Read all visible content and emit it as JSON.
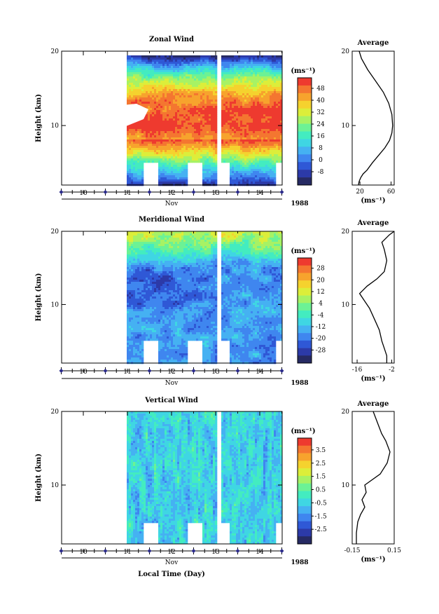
{
  "figure": {
    "xlabel": "Local Time (Day)",
    "month_label": "Nov",
    "year_label": "1988",
    "unit_label": "(ms⁻¹)",
    "unit_label_axis": "(ms⁻¹)",
    "ylabel": "Height (km)",
    "avg_title": "Average"
  },
  "chart_data": [
    {
      "type": "heatmap",
      "title": "Zonal Wind",
      "ylabel": "Height (km)",
      "xlabel": "Nov",
      "x_ticks": [
        "10",
        "11",
        "12",
        "13",
        "14"
      ],
      "y_ticks": [
        "20",
        "10"
      ],
      "xlim": [
        9.5,
        14.6
      ],
      "ylim": [
        2,
        20
      ],
      "colorbar_ticks": [
        "48",
        "40",
        "32",
        "24",
        "16",
        "8",
        "0",
        "-8"
      ],
      "colorbar_range": [
        -12,
        52
      ],
      "colors": [
        "#262a63",
        "#2c3aa8",
        "#2f58d6",
        "#3f86ef",
        "#45b1f2",
        "#3fd6e3",
        "#43ecc0",
        "#6cf295",
        "#a7f264",
        "#dcee3a",
        "#f5d22e",
        "#f7a32d",
        "#f47630",
        "#ee3a2f"
      ],
      "description_free": true
    },
    {
      "type": "line",
      "title": "Average",
      "x_ticks": [
        "20",
        "60"
      ],
      "y_ticks": [
        "20",
        "10"
      ],
      "xlim": [
        10,
        64
      ],
      "ylim": [
        2,
        20
      ],
      "xlabel": "(ms⁻¹)",
      "series": [
        {
          "x": [
            19,
            22,
            30,
            40,
            50,
            57,
            61,
            62,
            61,
            58,
            52,
            44,
            36,
            29,
            24,
            21,
            19,
            18
          ],
          "y": [
            20,
            19,
            17.5,
            16,
            14.5,
            13,
            11.5,
            10,
            9,
            8,
            7,
            6,
            5,
            4,
            3.5,
            3,
            2.5,
            2
          ]
        }
      ]
    },
    {
      "type": "heatmap",
      "title": "Meridional Wind",
      "ylabel": "Height (km)",
      "xlabel": "Nov",
      "x_ticks": [
        "10",
        "11",
        "12",
        "13",
        "14"
      ],
      "y_ticks": [
        "20",
        "10"
      ],
      "xlim": [
        9.5,
        14.6
      ],
      "ylim": [
        2,
        20
      ],
      "colorbar_ticks": [
        "28",
        "20",
        "12",
        "4",
        "-4",
        "-12",
        "-20",
        "-28"
      ],
      "colorbar_range": [
        -32,
        32
      ],
      "colors": [
        "#262a63",
        "#2c3aa8",
        "#2f58d6",
        "#3f86ef",
        "#45b1f2",
        "#3fd6e3",
        "#43ecc0",
        "#6cf295",
        "#a7f264",
        "#dcee3a",
        "#f5d22e",
        "#f7a32d",
        "#f47630",
        "#ee3a2f"
      ]
    },
    {
      "type": "line",
      "title": "Average",
      "x_ticks": [
        "-16",
        "-2"
      ],
      "y_ticks": [
        "20",
        "10"
      ],
      "xlim": [
        -18,
        -1
      ],
      "ylim": [
        2,
        20
      ],
      "xlabel": "(ms⁻¹)",
      "series": [
        {
          "x": [
            -1,
            -3,
            -6,
            -5,
            -4,
            -5,
            -8,
            -12,
            -15,
            -13,
            -11,
            -9,
            -7,
            -6,
            -5,
            -4,
            -4
          ],
          "y": [
            20,
            19.5,
            18.5,
            17.5,
            16,
            14.5,
            13.5,
            12.5,
            11.5,
            10.5,
            9.5,
            8,
            6.5,
            5,
            4,
            3,
            2
          ]
        }
      ]
    },
    {
      "type": "heatmap",
      "title": "Vertical Wind",
      "ylabel": "Height (km)",
      "xlabel": "Nov",
      "x_ticks": [
        "10",
        "11",
        "12",
        "13",
        "14"
      ],
      "y_ticks": [
        "20",
        "10"
      ],
      "xlim": [
        9.5,
        14.6
      ],
      "ylim": [
        2,
        20
      ],
      "colorbar_ticks": [
        "3.5",
        "2.5",
        "1.5",
        "0.5",
        "-0.5",
        "-1.5",
        "-2.5"
      ],
      "colorbar_range": [
        -3.0,
        4.0
      ],
      "colors": [
        "#262a63",
        "#2c3aa8",
        "#2f58d6",
        "#3f86ef",
        "#45b1f2",
        "#3fd6e3",
        "#43ecc0",
        "#6cf295",
        "#a7f264",
        "#dcee3a",
        "#f5d22e",
        "#f7a32d",
        "#f47630",
        "#ee3a2f"
      ]
    },
    {
      "type": "line",
      "title": "Average",
      "x_ticks": [
        "-0.15",
        "0.15"
      ],
      "y_ticks": [
        "20",
        "10"
      ],
      "xlim": [
        -0.15,
        0.15
      ],
      "ylim": [
        2,
        20
      ],
      "xlabel": "(ms⁻¹)",
      "series": [
        {
          "x": [
            0.0,
            0.02,
            0.04,
            0.06,
            0.09,
            0.12,
            0.1,
            0.05,
            -0.06,
            -0.05,
            -0.08,
            -0.06,
            -0.09,
            -0.11,
            -0.12,
            -0.12
          ],
          "y": [
            20,
            19,
            18,
            17,
            16,
            14.5,
            13,
            11.5,
            10,
            9,
            8,
            7,
            6,
            5,
            3.5,
            2
          ]
        }
      ]
    }
  ]
}
